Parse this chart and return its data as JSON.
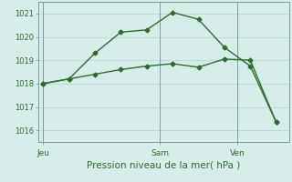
{
  "line1_x": [
    0,
    1,
    2,
    3,
    4,
    5,
    6,
    7,
    8,
    9
  ],
  "line1_y": [
    1018.0,
    1018.2,
    1019.3,
    1020.2,
    1020.3,
    1021.05,
    1020.75,
    1019.55,
    1018.75,
    1016.35
  ],
  "line2_x": [
    0,
    1,
    2,
    3,
    4,
    5,
    6,
    7,
    8,
    9
  ],
  "line2_y": [
    1018.0,
    1018.2,
    1018.4,
    1018.6,
    1018.75,
    1018.85,
    1018.7,
    1019.05,
    1019.0,
    1016.35
  ],
  "jeu_x": 0,
  "sam_x": 4.5,
  "ven_x": 7.5,
  "xlim": [
    -0.2,
    9.5
  ],
  "ylim": [
    1015.5,
    1021.5
  ],
  "yticks": [
    1016,
    1017,
    1018,
    1019,
    1020,
    1021
  ],
  "xtick_positions": [
    0,
    4.5,
    7.5
  ],
  "xtick_labels": [
    "Jeu",
    "Sam",
    "Ven"
  ],
  "vline_positions": [
    0,
    4.5,
    7.5
  ],
  "line_color": "#2d6e2d",
  "bg_color": "#d5eeea",
  "grid_color": "#b8d8d4",
  "xlabel": "Pression niveau de la mer( hPa )",
  "marker": "D",
  "markersize": 2.5,
  "linewidth": 1.0
}
